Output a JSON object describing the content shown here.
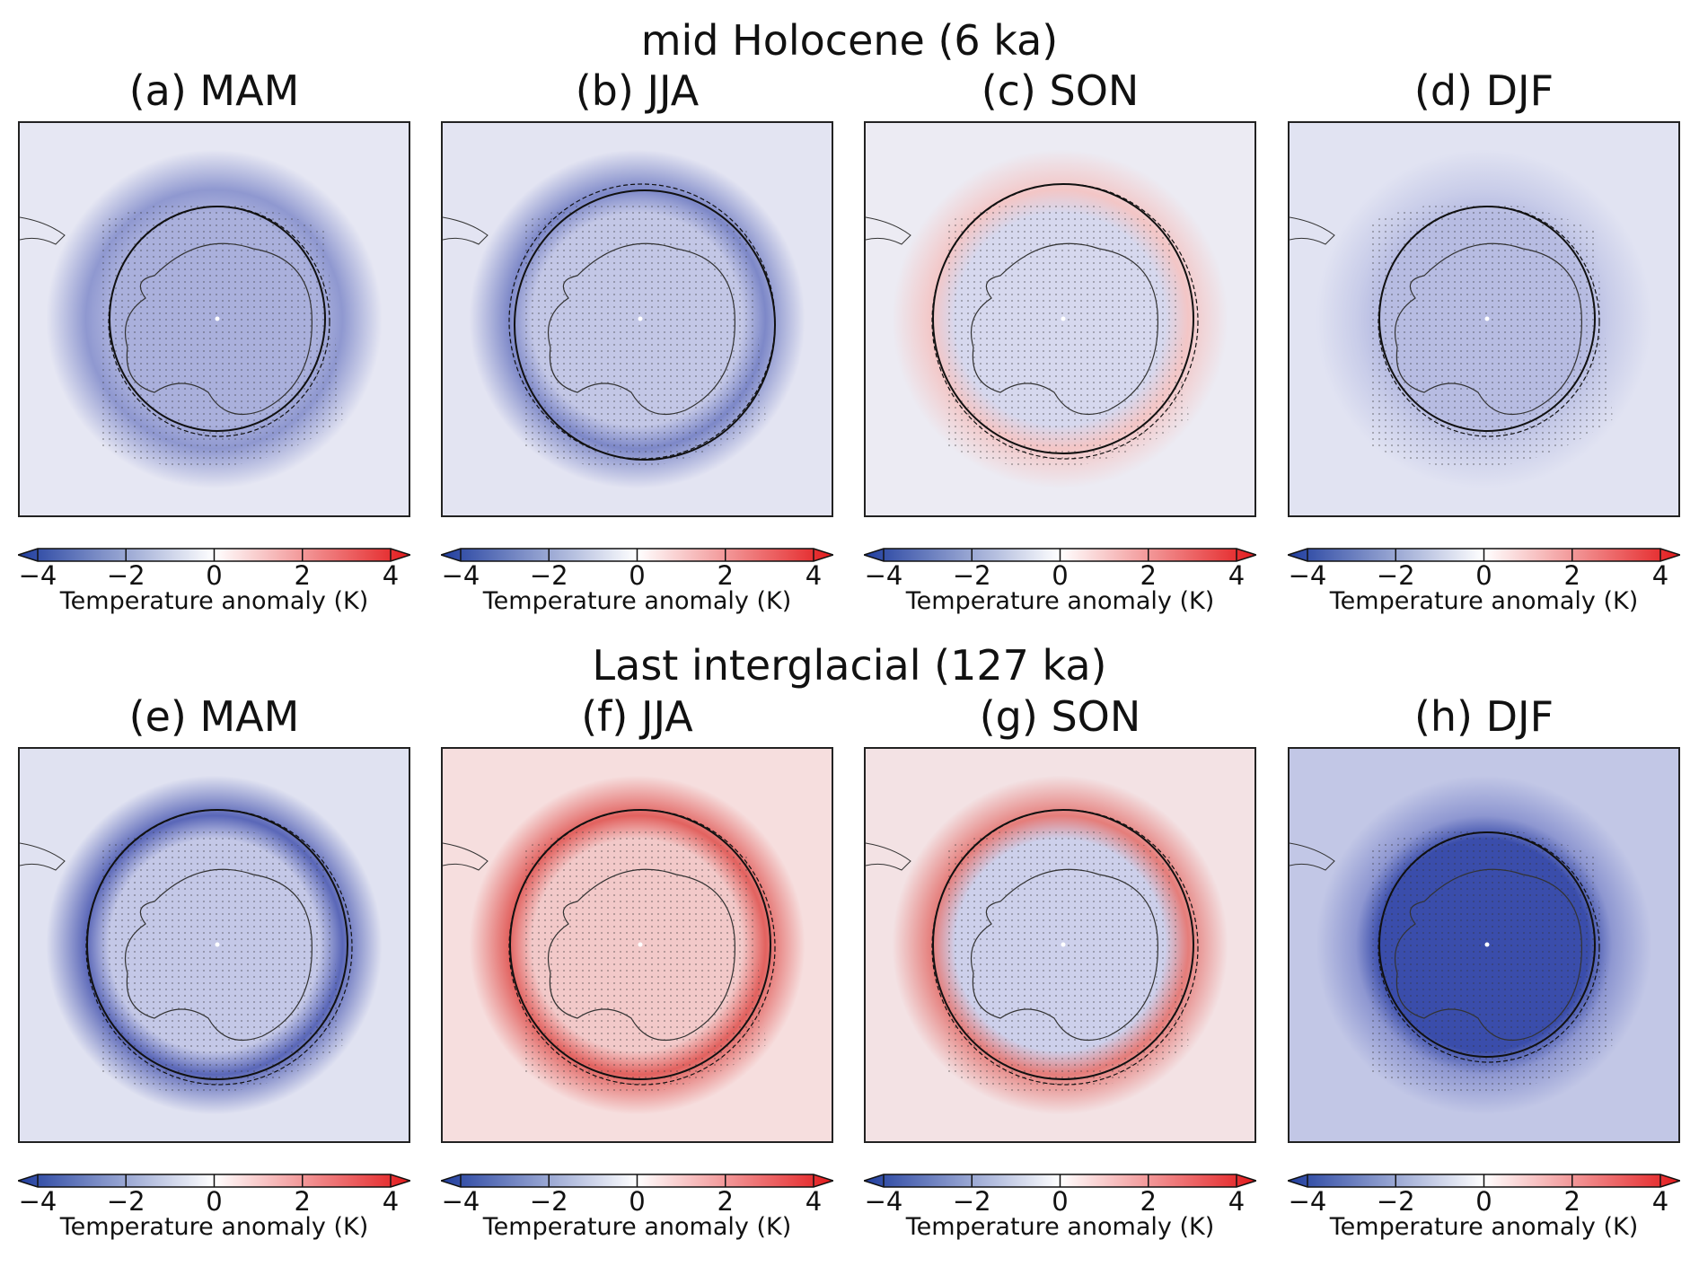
{
  "rows": [
    {
      "title": "mid Holocene (6 ka)",
      "panels": [
        {
          "label": "(a) MAM",
          "interior": "#aab0dc",
          "exterior": "#e6e7f3",
          "ring": "#8f98d0"
        },
        {
          "label": "(b) JJA",
          "interior": "#c3c7e6",
          "exterior": "#e3e4f2",
          "ring": "#7d88c8"
        },
        {
          "label": "(c) SON",
          "interior": "#d6d8ee",
          "exterior": "#ecebf3",
          "ring": "#f3c6c6"
        },
        {
          "label": "(d) DJF",
          "interior": "#b7bce2",
          "exterior": "#e1e3f2",
          "ring": "#c9cde9"
        }
      ]
    },
    {
      "title": "Last interglacial (127 ka)",
      "panels": [
        {
          "label": "(e) MAM",
          "interior": "#c4c8e7",
          "exterior": "#e0e2f1",
          "ring": "#5a67b8"
        },
        {
          "label": "(f) JJA",
          "interior": "#f2c9c9",
          "exterior": "#f6dede",
          "ring": "#e2625f"
        },
        {
          "label": "(g) SON",
          "interior": "#cdd0eb",
          "exterior": "#f3e2e4",
          "ring": "#e57d7a"
        },
        {
          "label": "(h) DJF",
          "interior": "#3a4dab",
          "exterior": "#c2c7e6",
          "ring": "#8e97d1"
        }
      ]
    }
  ],
  "colorbar": {
    "label": "Temperature anomaly (K)",
    "ticks": [
      "−4",
      "−2",
      "0",
      "2",
      "4"
    ],
    "range": [
      -4,
      4
    ],
    "colors": {
      "min": "#1f3d9e",
      "mid": "#ffffff",
      "max": "#e31a1c"
    }
  }
}
